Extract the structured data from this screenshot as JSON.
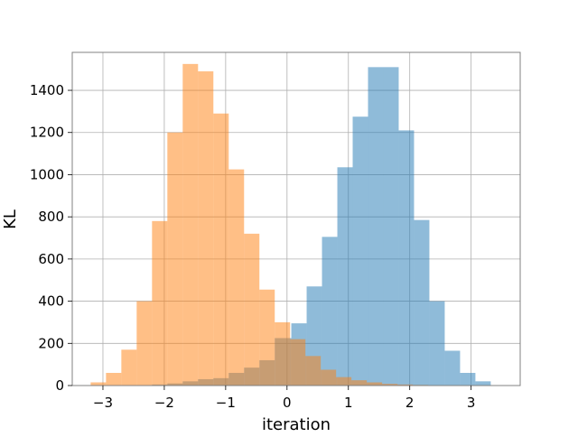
{
  "chart_data": {
    "type": "bar",
    "subtype": "overlaid-histogram",
    "title": "",
    "xlabel": "iteration",
    "ylabel": "KL",
    "xlim": [
      -3.5,
      3.8
    ],
    "ylim": [
      0,
      1580
    ],
    "xticks": [
      -3,
      -2,
      -1,
      0,
      1,
      2,
      3
    ],
    "xtick_labels": [
      "−3",
      "−2",
      "−1",
      "0",
      "1",
      "2",
      "3"
    ],
    "yticks": [
      0,
      200,
      400,
      600,
      800,
      1000,
      1200,
      1400
    ],
    "yticklabels": [
      "0",
      "200",
      "400",
      "600",
      "800",
      "1000",
      "1200",
      "1400"
    ],
    "grid": true,
    "legend": false,
    "series": [
      {
        "color": "#1f77b4",
        "opacity": 0.5,
        "bins": [
          {
            "x0": -2.2,
            "x1": -1.95,
            "value": 5
          },
          {
            "x0": -1.95,
            "x1": -1.7,
            "value": 10
          },
          {
            "x0": -1.7,
            "x1": -1.45,
            "value": 20
          },
          {
            "x0": -1.45,
            "x1": -1.2,
            "value": 30
          },
          {
            "x0": -1.2,
            "x1": -0.95,
            "value": 35
          },
          {
            "x0": -0.95,
            "x1": -0.7,
            "value": 60
          },
          {
            "x0": -0.7,
            "x1": -0.45,
            "value": 85
          },
          {
            "x0": -0.45,
            "x1": -0.2,
            "value": 120
          },
          {
            "x0": -0.2,
            "x1": 0.07,
            "value": 225
          },
          {
            "x0": 0.07,
            "x1": 0.32,
            "value": 295
          },
          {
            "x0": 0.32,
            "x1": 0.57,
            "value": 470
          },
          {
            "x0": 0.57,
            "x1": 0.82,
            "value": 705
          },
          {
            "x0": 0.82,
            "x1": 1.07,
            "value": 1035
          },
          {
            "x0": 1.07,
            "x1": 1.32,
            "value": 1275
          },
          {
            "x0": 1.32,
            "x1": 1.57,
            "value": 1510
          },
          {
            "x0": 1.57,
            "x1": 1.82,
            "value": 1510
          },
          {
            "x0": 1.82,
            "x1": 2.07,
            "value": 1210
          },
          {
            "x0": 2.07,
            "x1": 2.32,
            "value": 785
          },
          {
            "x0": 2.32,
            "x1": 2.57,
            "value": 400
          },
          {
            "x0": 2.57,
            "x1": 2.82,
            "value": 165
          },
          {
            "x0": 2.82,
            "x1": 3.07,
            "value": 60
          },
          {
            "x0": 3.07,
            "x1": 3.32,
            "value": 20
          }
        ]
      },
      {
        "color": "#ff7f0e",
        "opacity": 0.5,
        "bins": [
          {
            "x0": -3.2,
            "x1": -2.95,
            "value": 15
          },
          {
            "x0": -2.95,
            "x1": -2.7,
            "value": 60
          },
          {
            "x0": -2.7,
            "x1": -2.45,
            "value": 170
          },
          {
            "x0": -2.45,
            "x1": -2.2,
            "value": 400
          },
          {
            "x0": -2.2,
            "x1": -1.95,
            "value": 780
          },
          {
            "x0": -1.95,
            "x1": -1.7,
            "value": 1200
          },
          {
            "x0": -1.7,
            "x1": -1.45,
            "value": 1525
          },
          {
            "x0": -1.45,
            "x1": -1.2,
            "value": 1490
          },
          {
            "x0": -1.2,
            "x1": -0.95,
            "value": 1290
          },
          {
            "x0": -0.95,
            "x1": -0.7,
            "value": 1025
          },
          {
            "x0": -0.7,
            "x1": -0.45,
            "value": 720
          },
          {
            "x0": -0.45,
            "x1": -0.2,
            "value": 455
          },
          {
            "x0": -0.2,
            "x1": 0.05,
            "value": 300
          },
          {
            "x0": 0.05,
            "x1": 0.3,
            "value": 220
          },
          {
            "x0": 0.3,
            "x1": 0.55,
            "value": 140
          },
          {
            "x0": 0.55,
            "x1": 0.8,
            "value": 75
          },
          {
            "x0": 0.8,
            "x1": 1.05,
            "value": 40
          },
          {
            "x0": 1.05,
            "x1": 1.3,
            "value": 25
          },
          {
            "x0": 1.3,
            "x1": 1.55,
            "value": 15
          },
          {
            "x0": 1.55,
            "x1": 1.8,
            "value": 8
          },
          {
            "x0": 1.8,
            "x1": 2.05,
            "value": 5
          },
          {
            "x0": 2.05,
            "x1": 2.3,
            "value": 3
          }
        ]
      }
    ]
  }
}
